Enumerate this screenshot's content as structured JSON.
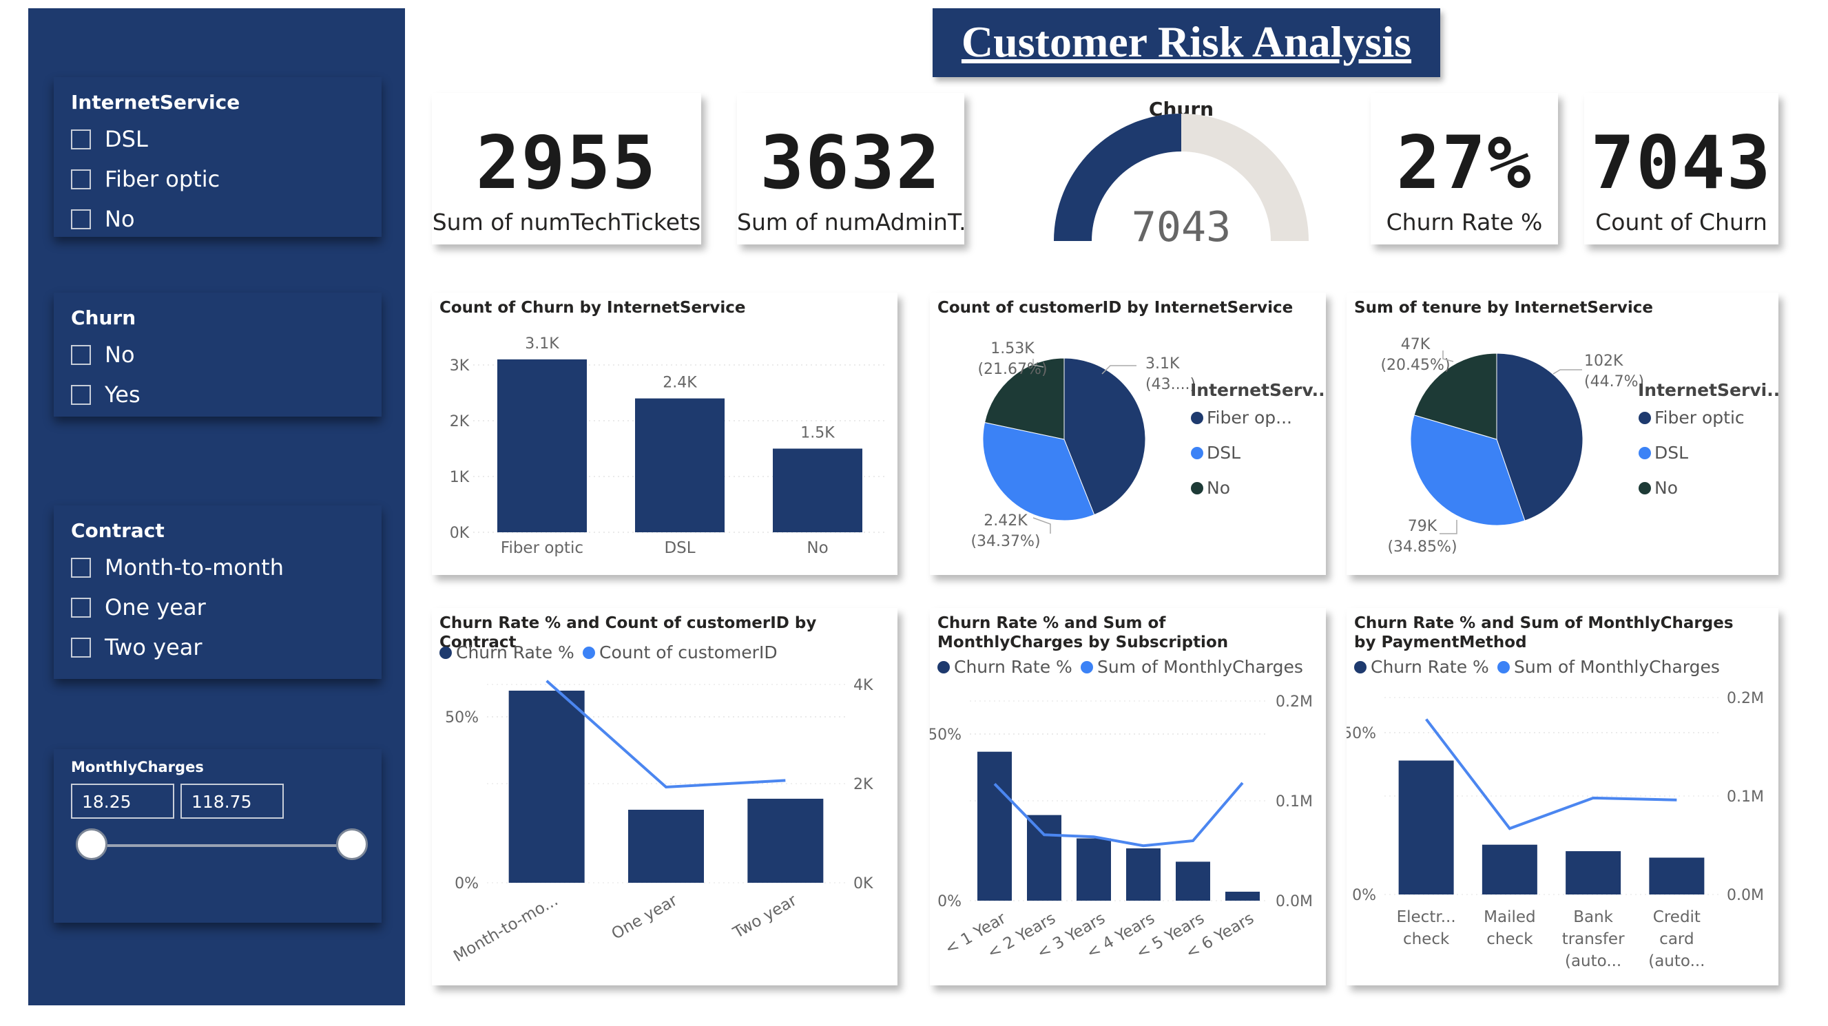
{
  "title": "Customer Risk Analysis",
  "slicers": {
    "internet": {
      "title": "InternetService",
      "options": [
        "DSL",
        "Fiber optic",
        "No"
      ]
    },
    "churn": {
      "title": "Churn",
      "options": [
        "No",
        "Yes"
      ]
    },
    "contract": {
      "title": "Contract",
      "options": [
        "Month-to-month",
        "One year",
        "Two year"
      ]
    },
    "monthly": {
      "title": "MonthlyCharges",
      "min": "18.25",
      "max": "118.75"
    }
  },
  "kpis": [
    {
      "value": "2955",
      "label": "Sum of numTechTickets"
    },
    {
      "value": "3632",
      "label": "Sum of numAdminT..."
    },
    {
      "value": "27%",
      "label": "Churn Rate %"
    },
    {
      "value": "7043",
      "label": "Count of Churn"
    }
  ],
  "gauge": {
    "title": "Churn",
    "value_label": "7043",
    "fill_fraction": 0.5
  },
  "colors": {
    "dark": "#1e3a6e",
    "bright": "#3b82f6",
    "teal": "#1d3a36",
    "gauge_bg": "#e6e2dd",
    "line": "#4b86f0"
  },
  "charts": {
    "churn_by_internet": {
      "title": "Count of Churn by InternetService",
      "chart_data": {
        "type": "bar",
        "categories": [
          "Fiber optic",
          "DSL",
          "No"
        ],
        "values": [
          3100,
          2400,
          1500
        ],
        "data_labels": [
          "3.1K",
          "2.4K",
          "1.5K"
        ],
        "yticks": [
          "0K",
          "1K",
          "2K",
          "3K"
        ],
        "ylim": [
          0,
          3300
        ]
      }
    },
    "customers_by_internet": {
      "title": "Count of customerID by InternetService",
      "legend_title": "InternetServ...",
      "legend": [
        "Fiber op...",
        "DSL",
        "No"
      ],
      "chart_data": {
        "type": "pie",
        "labels": [
          "Fiber optic",
          "DSL",
          "No"
        ],
        "values": [
          3100,
          2420,
          1530
        ],
        "value_labels": [
          "3.1K",
          "2.42K",
          "1.53K"
        ],
        "percent_labels": [
          "(43....)",
          "(34.37%)",
          "(21.67%)"
        ],
        "fractions": [
          0.4396,
          0.3437,
          0.2167
        ]
      }
    },
    "tenure_by_internet": {
      "title": "Sum of tenure by InternetService",
      "legend_title": "InternetServi...",
      "legend": [
        "Fiber optic",
        "DSL",
        "No"
      ],
      "chart_data": {
        "type": "pie",
        "labels": [
          "Fiber optic",
          "DSL",
          "No"
        ],
        "values": [
          102000,
          79000,
          47000
        ],
        "value_labels": [
          "102K",
          "79K",
          "47K"
        ],
        "percent_labels": [
          "(44.7%)",
          "(34.85%)",
          "(20.45%)"
        ],
        "fractions": [
          0.447,
          0.3485,
          0.2045
        ]
      }
    },
    "contract": {
      "title": "Churn Rate % and Count of customerID by Contract",
      "legend": [
        "Churn Rate %",
        "Count of customerID"
      ],
      "chart_data": {
        "type": "bar",
        "categories": [
          "Month-to-mo...",
          "One year",
          "Two year"
        ],
        "series": [
          {
            "name": "Count of customerID",
            "values": [
              3875,
              1473,
              1695
            ]
          },
          {
            "name": "Churn Rate %",
            "values": [
              0.43,
              0.11,
              0.13
            ]
          }
        ],
        "y_left_ticks": [
          "0%",
          "50%"
        ],
        "y_right_ticks": [
          "0K",
          "2K",
          "4K"
        ]
      }
    },
    "subscription": {
      "title": "Churn Rate % and Sum of MonthlyCharges by Subscription",
      "legend": [
        "Churn Rate %",
        "Sum of MonthlyCharges"
      ],
      "chart_data": {
        "type": "bar",
        "categories": [
          "< 1 Year",
          "< 2 Years",
          "< 3 Years",
          "< 4 Years",
          "< 5 Years",
          "< 6 Years"
        ],
        "series": [
          {
            "name": "Churn Rate %",
            "values": [
              0.48,
              0.29,
              0.22,
              0.19,
              0.15,
              0.06
            ]
          },
          {
            "name": "Sum of MonthlyCharges",
            "values": [
              0.117,
              0.066,
              0.064,
              0.055,
              0.06,
              0.118
            ]
          }
        ],
        "y_left_ticks": [
          "0%",
          "50%"
        ],
        "y_right_ticks": [
          "0.0M",
          "0.1M",
          "0.2M"
        ]
      }
    },
    "payment": {
      "title": "Churn Rate % and Sum of MonthlyCharges by PaymentMethod",
      "legend": [
        "Churn Rate %",
        "Sum of MonthlyCharges"
      ],
      "chart_data": {
        "type": "bar",
        "categories": [
          [
            "Electr...",
            "check"
          ],
          [
            "Mailed",
            "check"
          ],
          [
            "Bank",
            "transfer",
            "(auto..."
          ],
          [
            "Credit",
            "card",
            "(auto..."
          ]
        ],
        "series": [
          {
            "name": "Churn Rate %",
            "values": [
              0.45,
              0.19,
              0.17,
              0.15
            ]
          },
          {
            "name": "Sum of MonthlyCharges",
            "values": [
              0.178,
              0.067,
              0.098,
              0.096
            ]
          }
        ],
        "y_left_ticks": [
          "0%",
          "50%"
        ],
        "y_right_ticks": [
          "0.0M",
          "0.1M",
          "0.2M"
        ]
      }
    }
  }
}
